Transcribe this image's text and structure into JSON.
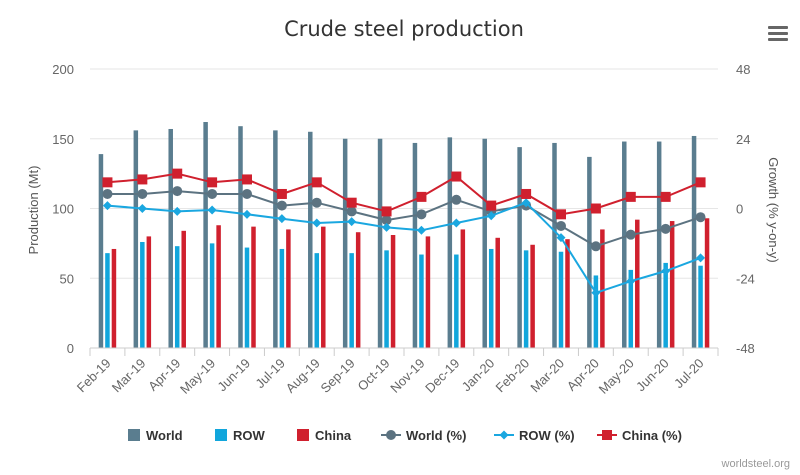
{
  "colors": {
    "world": "#5a7d8f",
    "row": "#11a6dc",
    "china": "#d0202e",
    "world_line": "#5c7381",
    "row_line": "#1aa7e0",
    "china_line": "#d0202e"
  },
  "menu": {
    "icon": "hamburger-menu-icon"
  },
  "credit": "worldsteel.org",
  "chart_data": {
    "type": "bar",
    "title": "Crude steel production",
    "xlabel": "",
    "ylabel": "Production (Mt)",
    "y2label": "Growth (% y-on-y)",
    "ylim": [
      0,
      200
    ],
    "y2lim": [
      -48,
      48
    ],
    "yticks": [
      "0",
      "50",
      "100",
      "150",
      "200"
    ],
    "y2ticks": [
      "-48",
      "-24",
      "0",
      "24",
      "48"
    ],
    "categories": [
      "Feb-19",
      "Mar-19",
      "Apr-19",
      "May-19",
      "Jun-19",
      "Jul-19",
      "Aug-19",
      "Sep-19",
      "Oct-19",
      "Nov-19",
      "Dec-19",
      "Jan-20",
      "Feb-20",
      "Mar-20",
      "Apr-20",
      "May-20",
      "Jun-20",
      "Jul-20"
    ],
    "series": [
      {
        "name": "World",
        "type": "bar",
        "axis": "left",
        "values": [
          139,
          156,
          157,
          162,
          159,
          156,
          155,
          150,
          150,
          147,
          151,
          150,
          144,
          147,
          137,
          148,
          148,
          152
        ]
      },
      {
        "name": "ROW",
        "type": "bar",
        "axis": "left",
        "values": [
          68,
          76,
          73,
          75,
          72,
          71,
          68,
          68,
          70,
          67,
          67,
          71,
          70,
          69,
          52,
          56,
          61,
          59
        ]
      },
      {
        "name": "China",
        "type": "bar",
        "axis": "left",
        "values": [
          71,
          80,
          84,
          88,
          87,
          85,
          87,
          83,
          81,
          80,
          85,
          79,
          74,
          78,
          85,
          92,
          91,
          93
        ]
      },
      {
        "name": "World (%)",
        "type": "line",
        "axis": "right",
        "values": [
          5,
          5,
          6,
          5,
          5,
          1,
          2,
          -1,
          -4,
          -2,
          3,
          -1,
          1,
          -6,
          -13,
          -9,
          -7,
          -3
        ]
      },
      {
        "name": "ROW (%)",
        "type": "line",
        "axis": "right",
        "values": [
          1,
          0,
          -1,
          -0.5,
          -2,
          -3.5,
          -5,
          -4.5,
          -6.5,
          -7.5,
          -5,
          -2.5,
          2,
          -10,
          -29,
          -25,
          -21.5,
          -17
        ]
      },
      {
        "name": "China (%)",
        "type": "line",
        "axis": "right",
        "values": [
          9,
          10,
          12,
          9,
          10,
          5,
          9,
          2,
          -1,
          4,
          11,
          1,
          5,
          -2,
          0,
          4,
          4,
          9
        ]
      }
    ],
    "legend_position": "bottom",
    "grid": true
  }
}
